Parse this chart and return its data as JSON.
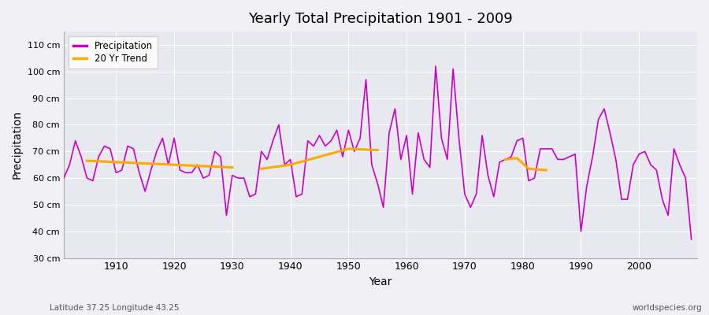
{
  "title": "Yearly Total Precipitation 1901 - 2009",
  "xlabel": "Year",
  "ylabel": "Precipitation",
  "bg_color": "#f0f0f5",
  "plot_bg_color": "#e8e8f0",
  "line_color": "#cc00cc",
  "trend_color": "#ffaa00",
  "ylim": [
    30,
    115
  ],
  "yticks": [
    30,
    40,
    50,
    60,
    70,
    80,
    90,
    100,
    110
  ],
  "ytick_labels": [
    "30 cm",
    "40 cm",
    "50 cm",
    "60 cm",
    "70 cm",
    "80 cm",
    "90 cm",
    "100 cm",
    "110 cm"
  ],
  "years": [
    1901,
    1902,
    1903,
    1904,
    1905,
    1906,
    1907,
    1908,
    1909,
    1910,
    1911,
    1912,
    1913,
    1914,
    1915,
    1916,
    1917,
    1918,
    1919,
    1920,
    1921,
    1922,
    1923,
    1924,
    1925,
    1926,
    1927,
    1928,
    1929,
    1930,
    1931,
    1932,
    1933,
    1934,
    1935,
    1936,
    1937,
    1938,
    1939,
    1940,
    1941,
    1942,
    1943,
    1944,
    1945,
    1946,
    1947,
    1948,
    1949,
    1950,
    1951,
    1952,
    1953,
    1954,
    1955,
    1956,
    1957,
    1958,
    1959,
    1960,
    1961,
    1962,
    1963,
    1964,
    1965,
    1966,
    1967,
    1968,
    1969,
    1970,
    1971,
    1972,
    1973,
    1974,
    1975,
    1976,
    1977,
    1978,
    1979,
    1980,
    1981,
    1982,
    1983,
    1984,
    1985,
    1986,
    1987,
    1988,
    1989,
    1990,
    1991,
    1992,
    1993,
    1994,
    1995,
    1996,
    1997,
    1998,
    1999,
    2000,
    2001,
    2002,
    2003,
    2004,
    2005,
    2006,
    2007,
    2008,
    2009
  ],
  "precip": [
    60,
    65,
    74,
    68,
    60,
    59,
    68,
    72,
    71,
    62,
    63,
    72,
    71,
    62,
    55,
    63,
    70,
    75,
    65,
    75,
    63,
    62,
    62,
    65,
    60,
    61,
    70,
    68,
    46,
    61,
    60,
    60,
    53,
    54,
    70,
    67,
    74,
    80,
    65,
    67,
    53,
    54,
    74,
    72,
    76,
    72,
    74,
    78,
    68,
    78,
    70,
    75,
    97,
    65,
    58,
    49,
    77,
    86,
    67,
    76,
    54,
    77,
    67,
    64,
    102,
    75,
    67,
    101,
    75,
    54,
    49,
    54,
    76,
    61,
    53,
    66,
    67,
    68,
    74,
    75,
    59,
    60,
    71,
    71,
    71,
    67,
    67,
    68,
    69,
    40,
    57,
    68,
    82,
    86,
    77,
    67,
    52,
    52,
    65,
    69,
    70,
    65,
    63,
    52,
    46,
    71,
    65,
    60,
    37
  ],
  "trend_segments": [
    {
      "years": [
        1905,
        1910,
        1915,
        1920,
        1925,
        1930
      ],
      "values": [
        66.5,
        66,
        65.5,
        65,
        64.5,
        64
      ]
    },
    {
      "years": [
        1935,
        1940,
        1945,
        1950,
        1955
      ],
      "values": [
        63.5,
        65,
        68,
        71,
        70.5
      ]
    },
    {
      "years": [
        1977,
        1979,
        1981,
        1984
      ],
      "values": [
        67,
        67.5,
        63.5,
        63
      ]
    }
  ],
  "footnote_left": "Latitude 37.25 Longitude 43.25",
  "footnote_right": "worldspecies.org",
  "legend_labels": [
    "Precipitation",
    "20 Yr Trend"
  ],
  "xticks": [
    1910,
    1920,
    1930,
    1940,
    1950,
    1960,
    1970,
    1980,
    1990,
    2000
  ]
}
